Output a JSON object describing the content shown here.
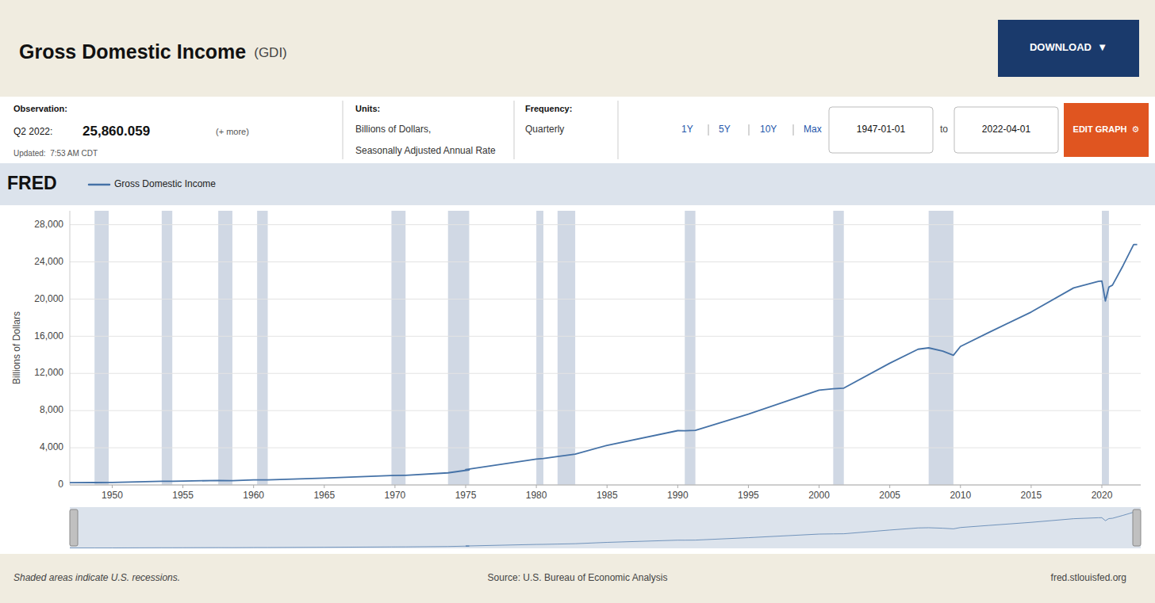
{
  "chart_data": {
    "type": "line",
    "title": "Gross Domestic Income",
    "subtitle": "(GDI)",
    "y_label": "Billions of Dollars",
    "x": [
      1947,
      1948.75,
      1949.75,
      1950,
      1953.5,
      1954.25,
      1955,
      1957.5,
      1958.5,
      1960,
      1960.25,
      1961.0,
      1965,
      1969.75,
      1970.75,
      1973.75,
      1975.25,
      1975,
      1980,
      1980.0,
      1980.5,
      1981.5,
      1982.75,
      1985,
      1990,
      1990.5,
      1991.25,
      1995,
      2000,
      2001.0,
      2001.75,
      2005,
      2007,
      2007.75,
      2008.75,
      2009.5,
      2010,
      2012,
      2015,
      2018,
      2019.75,
      2020.0,
      2020.25,
      2020.5,
      2020.75,
      2021.5,
      2022.25,
      2022.5
    ],
    "series": [
      {
        "name": "Gross Domestic Income",
        "color": "#4572a7",
        "values": [
          242,
          255,
          258,
          268,
          390,
          395,
          415,
          480,
          460,
          540,
          543,
          545,
          730,
          1010,
          1040,
          1300,
          1620,
          1660,
          2790,
          2790,
          2840,
          3050,
          3310,
          4260,
          5840,
          5830,
          5880,
          7620,
          10200,
          10340,
          10420,
          13100,
          14600,
          14750,
          14400,
          13950,
          14900,
          16400,
          18600,
          21200,
          21900,
          21950,
          19800,
          21300,
          21500,
          23600,
          25860,
          25860
        ]
      }
    ],
    "xlim": [
      1947.0,
      2022.75
    ],
    "ylim": [
      0,
      29500
    ],
    "xticks": [
      1950,
      1955,
      1960,
      1965,
      1970,
      1975,
      1980,
      1985,
      1990,
      1995,
      2000,
      2005,
      2010,
      2015,
      2020
    ],
    "yticks": [
      0,
      {
        "value": 4000,
        "label": "4,000"
      },
      {
        "value": 8000,
        "label": "8,000"
      },
      {
        "value": 12000,
        "label": "12,000"
      },
      {
        "value": 16000,
        "label": "16,000"
      },
      {
        "value": 20000,
        "label": "20,000"
      },
      {
        "value": 24000,
        "label": "24,000"
      },
      {
        "value": 28000,
        "label": "28,000"
      }
    ],
    "grid": true,
    "legend": "top left",
    "recession_bands": [
      [
        1948.75,
        1949.75
      ],
      [
        1953.5,
        1954.25
      ],
      [
        1957.5,
        1958.5
      ],
      [
        1960.25,
        1961.0
      ],
      [
        1969.75,
        1970.75
      ],
      [
        1973.75,
        1975.25
      ],
      [
        1980.0,
        1980.5
      ],
      [
        1981.5,
        1982.75
      ],
      [
        1990.5,
        1991.25
      ],
      [
        2001.0,
        2001.75
      ],
      [
        2007.75,
        2009.5
      ],
      [
        2020.0,
        2020.5
      ]
    ],
    "annotations": [
      "Observation:",
      "Q2 2022:",
      "25,860.059",
      "(+ more)",
      "Updated:  7:53 AM CDT",
      "Units:",
      "Billions of Dollars,",
      "Seasonally Adjusted Annual Rate",
      "Frequency:",
      "Quarterly",
      "1Y",
      "5Y",
      "10Y",
      "Max",
      "1947-01-01",
      "to",
      "2022-04-01",
      "DOWNLOAD  ▼",
      "EDIT GRAPH  ⚙",
      "FRED",
      "Shaded areas indicate U.S. recessions.",
      "Source: U.S. Bureau of Economic Analysis",
      "fred.stlouisfed.org"
    ]
  }
}
